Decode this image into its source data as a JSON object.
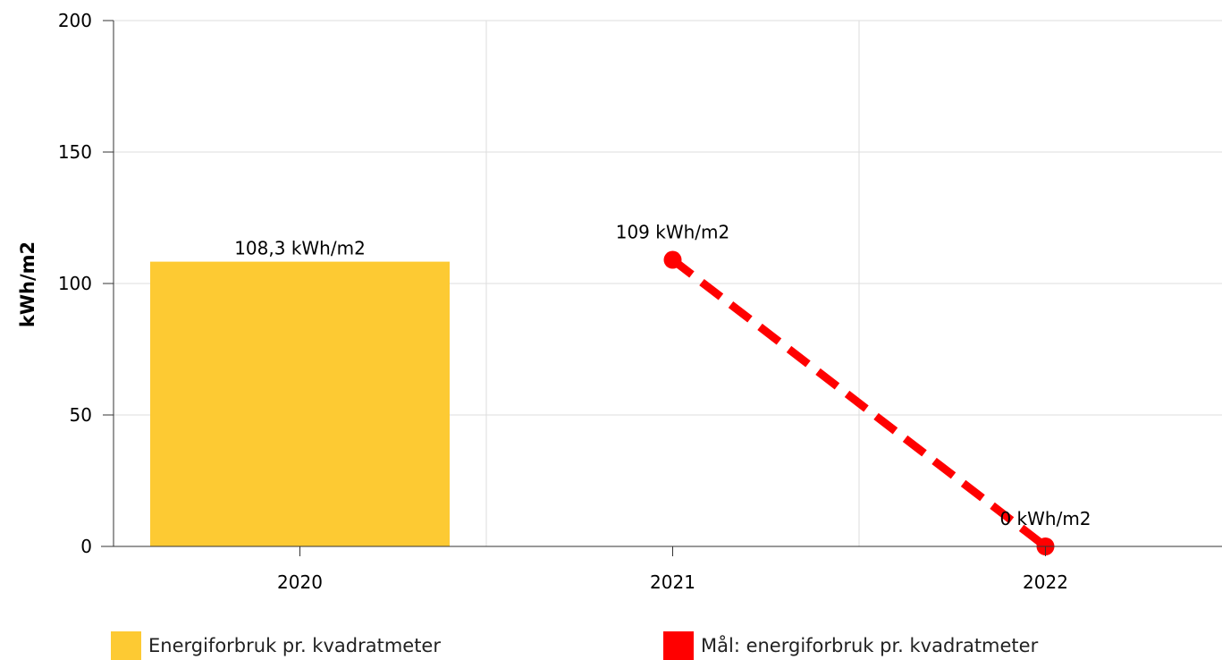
{
  "chart_data": {
    "type": "bar",
    "categories": [
      "2020",
      "2021",
      "2022"
    ],
    "ylabel": "kWh/m2",
    "ylim": [
      0,
      200
    ],
    "yticks": [
      0,
      50,
      100,
      150,
      200
    ],
    "grid": true,
    "legend_position": "bottom",
    "series": [
      {
        "name": "Energiforbruk pr. kvadratmeter",
        "type": "bar",
        "color": "#FDCA33",
        "points": [
          {
            "category": "2020",
            "value": 108.3,
            "label": "108,3 kWh/m2"
          }
        ]
      },
      {
        "name": "Mål: energiforbruk pr. kvadratmeter",
        "type": "line",
        "style": "dashed",
        "color": "#FF0000",
        "points": [
          {
            "category": "2021",
            "value": 109,
            "label": "109 kWh/m2"
          },
          {
            "category": "2022",
            "value": 0,
            "label": "0 kWh/m2"
          }
        ]
      }
    ]
  }
}
